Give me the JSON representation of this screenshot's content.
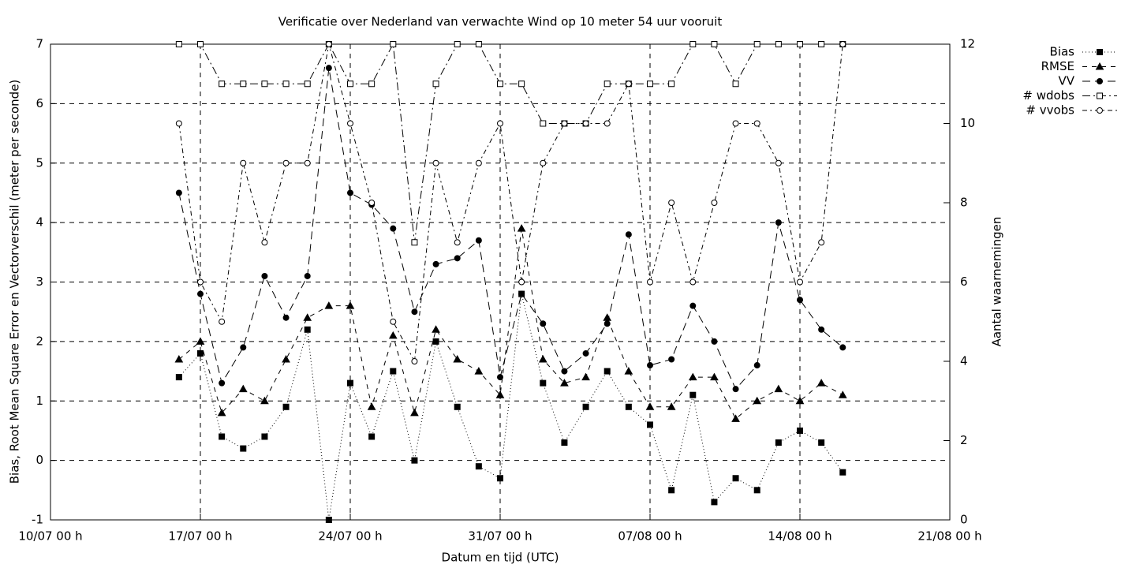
{
  "chart_data": {
    "type": "line",
    "title": "Verificatie over Nederland van verwachte Wind op 10 meter 54 uur vooruit",
    "xlabel": "Datum en tijd (UTC)",
    "ylabel": "Bias, Root Mean Square Error en Vectorverschil (meter per seconde)",
    "y2label": "Aantal waarnemingen",
    "x": [
      "16/07 00 h",
      "17/07 00 h",
      "18/07 00 h",
      "19/07 00 h",
      "20/07 00 h",
      "21/07 00 h",
      "22/07 00 h",
      "23/07 00 h",
      "24/07 00 h",
      "25/07 00 h",
      "26/07 00 h",
      "27/07 00 h",
      "28/07 00 h",
      "29/07 00 h",
      "30/07 00 h",
      "31/07 00 h",
      "01/08 00 h",
      "02/08 00 h",
      "03/08 00 h",
      "04/08 00 h",
      "05/08 00 h",
      "06/08 00 h",
      "07/08 00 h",
      "08/08 00 h",
      "09/08 00 h",
      "10/08 00 h",
      "11/08 00 h",
      "12/08 00 h",
      "13/08 00 h",
      "14/08 00 h",
      "15/08 00 h",
      "16/08 00 h"
    ],
    "xlim": [
      "10/07 00 h",
      "21/08 00 h"
    ],
    "xticks": [
      "10/07 00 h",
      "17/07 00 h",
      "24/07 00 h",
      "31/07 00 h",
      "07/08 00 h",
      "14/08 00 h",
      "21/08 00 h"
    ],
    "ylim": [
      -1,
      7
    ],
    "yticks": [
      -1,
      0,
      1,
      2,
      3,
      4,
      5,
      6,
      7
    ],
    "y2lim": [
      0,
      12
    ],
    "y2ticks": [
      0,
      2,
      4,
      6,
      8,
      10,
      12
    ],
    "grid": true,
    "legend": "top-right-outside",
    "series": [
      {
        "name": "Bias",
        "color": "#000000",
        "marker": "square",
        "filled": true,
        "dash": "1,3",
        "values": [
          1.4,
          1.8,
          0.4,
          0.2,
          0.4,
          0.9,
          2.2,
          -1,
          1.3,
          0.4,
          1.5,
          0,
          2.0,
          0.9,
          -0.1,
          -0.3,
          2.8,
          1.3,
          0.3,
          0.9,
          1.5,
          0.9,
          0.6,
          -0.5,
          1.1,
          -0.7,
          -0.3,
          -0.5,
          0.3,
          0.5,
          0.3,
          -0.2
        ]
      },
      {
        "name": "RMSE",
        "color": "#000000",
        "marker": "triangle",
        "filled": true,
        "dash": "6,6",
        "values": [
          1.7,
          2.0,
          0.8,
          1.2,
          1.0,
          1.7,
          2.4,
          2.6,
          2.6,
          0.9,
          2.1,
          0.8,
          2.2,
          1.7,
          1.5,
          1.1,
          3.9,
          1.7,
          1.3,
          1.4,
          2.4,
          1.5,
          0.9,
          0.9,
          1.4,
          1.4,
          0.7,
          1.0,
          1.2,
          1.0,
          1.3,
          1.1
        ]
      },
      {
        "name": "VV",
        "color": "#000000",
        "marker": "circle",
        "filled": true,
        "dash": "10,6",
        "values": [
          4.5,
          2.8,
          1.3,
          1.9,
          3.1,
          2.4,
          3.1,
          6.6,
          4.5,
          4.3,
          3.9,
          2.5,
          3.3,
          3.4,
          3.7,
          1.4,
          2.8,
          2.3,
          1.5,
          1.8,
          2.3,
          3.8,
          1.6,
          1.7,
          2.6,
          2.0,
          1.2,
          1.6,
          4.0,
          2.7,
          2.2,
          1.9
        ]
      },
      {
        "name": "# wdobs",
        "color": "#000000",
        "marker": "square",
        "filled": false,
        "dash": "10,4,2,4",
        "axis": "y2",
        "values": [
          12,
          12,
          11,
          11,
          11,
          11,
          11,
          12,
          11,
          11,
          12,
          7,
          11,
          12,
          12,
          11,
          11,
          10,
          10,
          10,
          11,
          11,
          11,
          11,
          12,
          12,
          11,
          12,
          12,
          12,
          12,
          12
        ]
      },
      {
        "name": "# vvobs",
        "color": "#000000",
        "marker": "circle",
        "filled": false,
        "dash": "6,4,2,4",
        "axis": "y2",
        "values": [
          10,
          6,
          5,
          9,
          7,
          9,
          9,
          12,
          10,
          8,
          5,
          4,
          9,
          7,
          9,
          10,
          6,
          9,
          10,
          10,
          10,
          11,
          6,
          8,
          6,
          8,
          10,
          10,
          9,
          6,
          7,
          12
        ]
      }
    ]
  }
}
